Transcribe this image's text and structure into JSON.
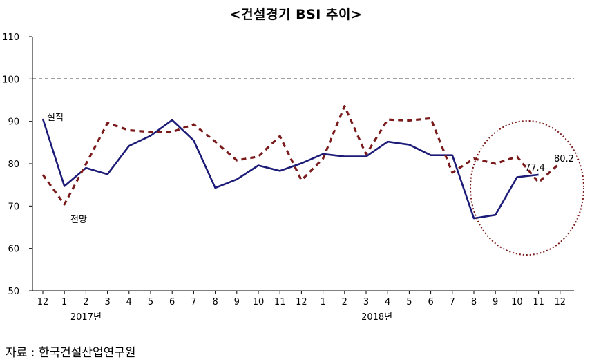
{
  "chart_data": {
    "type": "line",
    "title": "<건설경기 BSI 추이>",
    "x_labels": [
      "12",
      "1",
      "2",
      "3",
      "4",
      "5",
      "6",
      "7",
      "8",
      "9",
      "10",
      "11",
      "12",
      "1",
      "2",
      "3",
      "4",
      "5",
      "6",
      "7",
      "8",
      "9",
      "10",
      "11",
      "12"
    ],
    "year_labels": [
      {
        "label": "2017년",
        "index": 2
      },
      {
        "label": "2018년",
        "index": 15.5
      }
    ],
    "ylim": [
      50,
      110
    ],
    "yticks": [
      50,
      60,
      70,
      80,
      90,
      100,
      110
    ],
    "reference_line": 100,
    "series": [
      {
        "name": "실적",
        "style": "solid",
        "color": "#1c1c78",
        "values": [
          90.6,
          74.7,
          79.0,
          77.5,
          84.2,
          86.6,
          90.3,
          85.5,
          74.3,
          76.3,
          79.6,
          78.3,
          80.1,
          82.3,
          81.7,
          81.7,
          85.2,
          84.5,
          82.0,
          82.0,
          67.1,
          67.9,
          76.8,
          77.4,
          null
        ]
      },
      {
        "name": "전망",
        "style": "dashed",
        "color": "#7a1a1a",
        "values": [
          77.4,
          70.4,
          79.9,
          89.6,
          87.9,
          87.5,
          87.5,
          89.3,
          85.2,
          80.8,
          81.7,
          86.5,
          76.1,
          81.2,
          93.6,
          82.2,
          90.4,
          90.2,
          90.7,
          77.9,
          81.2,
          80.0,
          81.7,
          75.6,
          80.2
        ]
      }
    ],
    "point_labels": [
      {
        "text": "77.4",
        "series": 0,
        "index": 23
      },
      {
        "text": "80.2",
        "series": 1,
        "index": 24
      }
    ],
    "series_labels": [
      {
        "text": "실적",
        "series": 0
      },
      {
        "text": "전망",
        "series": 1
      }
    ]
  },
  "source_text": "자료 : 한국건설산업연구원"
}
